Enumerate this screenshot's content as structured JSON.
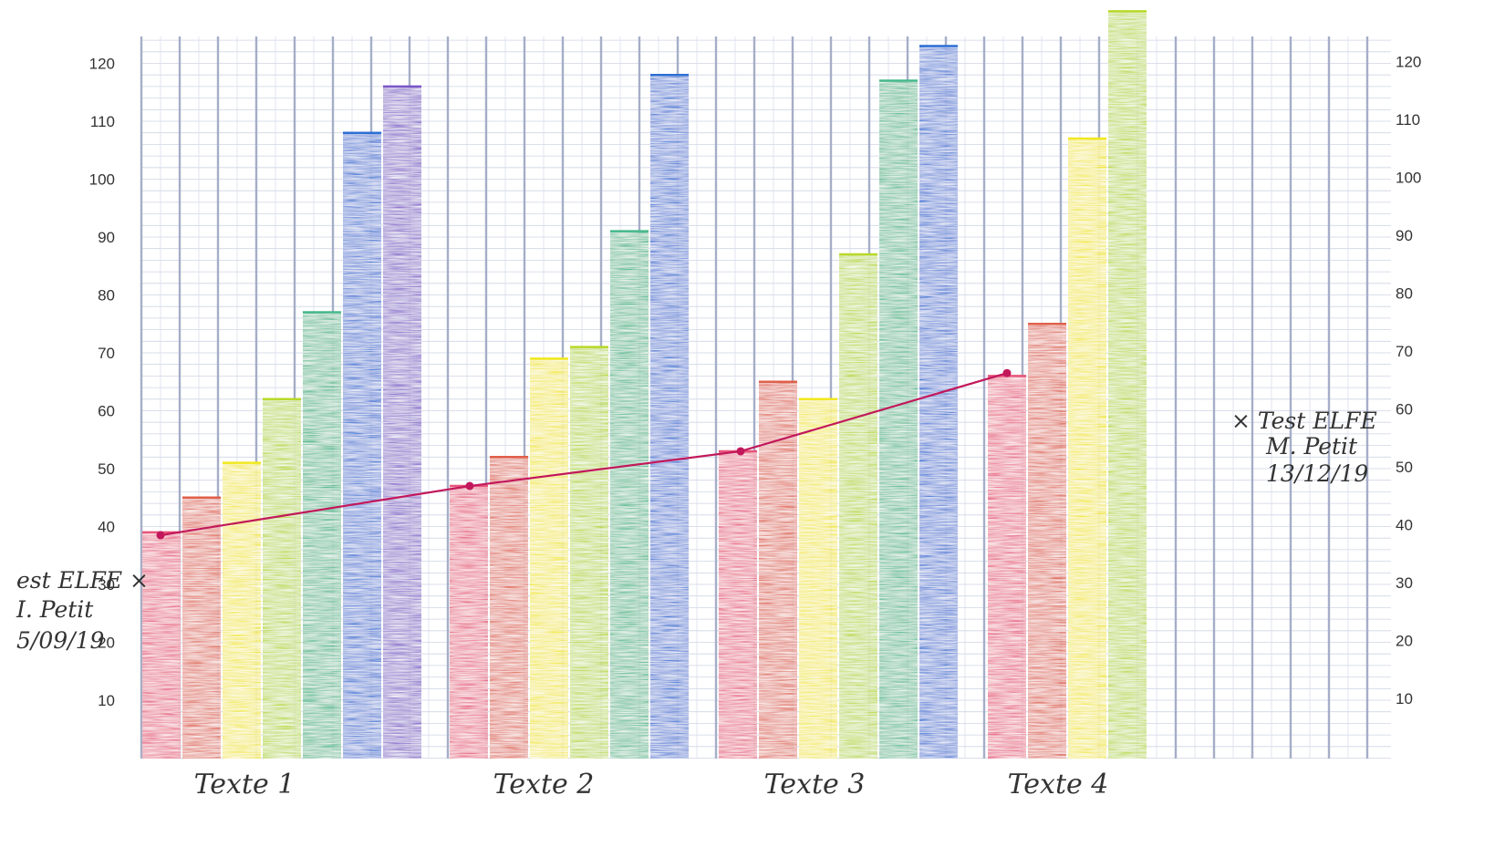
{
  "chart_data": {
    "type": "bar",
    "categories": [
      "Texte 1",
      "Texte 2",
      "Texte 3",
      "Texte 4"
    ],
    "bars": [
      [
        {
          "value": 39,
          "color": "#e8557a"
        },
        {
          "value": 45,
          "color": "#e0604a"
        },
        {
          "value": 51,
          "color": "#f2e81e"
        },
        {
          "value": 62,
          "color": "#b8d82a"
        },
        {
          "value": 77,
          "color": "#45b88a"
        },
        {
          "value": 108,
          "color": "#2d6fd4"
        },
        {
          "value": 116,
          "color": "#7a55c8"
        }
      ],
      [
        {
          "value": 47,
          "color": "#e8557a"
        },
        {
          "value": 52,
          "color": "#e0604a"
        },
        {
          "value": 69,
          "color": "#f2e81e"
        },
        {
          "value": 71,
          "color": "#b8d82a"
        },
        {
          "value": 91,
          "color": "#45b88a"
        },
        {
          "value": 118,
          "color": "#2d6fd4"
        }
      ],
      [
        {
          "value": 53,
          "color": "#e8557a"
        },
        {
          "value": 65,
          "color": "#e0604a"
        },
        {
          "value": 62,
          "color": "#f2e81e"
        },
        {
          "value": 87,
          "color": "#b8d82a"
        },
        {
          "value": 117,
          "color": "#45b88a"
        },
        {
          "value": 123,
          "color": "#2d6fd4"
        }
      ],
      [
        {
          "value": 66,
          "color": "#e8557a"
        },
        {
          "value": 75,
          "color": "#e0604a"
        },
        {
          "value": 107,
          "color": "#f2e81e"
        },
        {
          "value": 129,
          "color": "#b8d82a"
        }
      ]
    ],
    "line": {
      "color": "#c2185b",
      "values": [
        38.5,
        47,
        53,
        66.5
      ]
    },
    "yticks": [
      10,
      20,
      30,
      40,
      50,
      60,
      70,
      80,
      90,
      100,
      110,
      120
    ],
    "ylim": [
      0,
      130
    ],
    "grid": true,
    "annotations": [
      {
        "lines": [
          "est ELFE ×",
          "I. Petit",
          "5/09/19"
        ]
      },
      {
        "lines": [
          "× Test ELFE",
          "M. Petit",
          "13/12/19"
        ]
      }
    ]
  }
}
